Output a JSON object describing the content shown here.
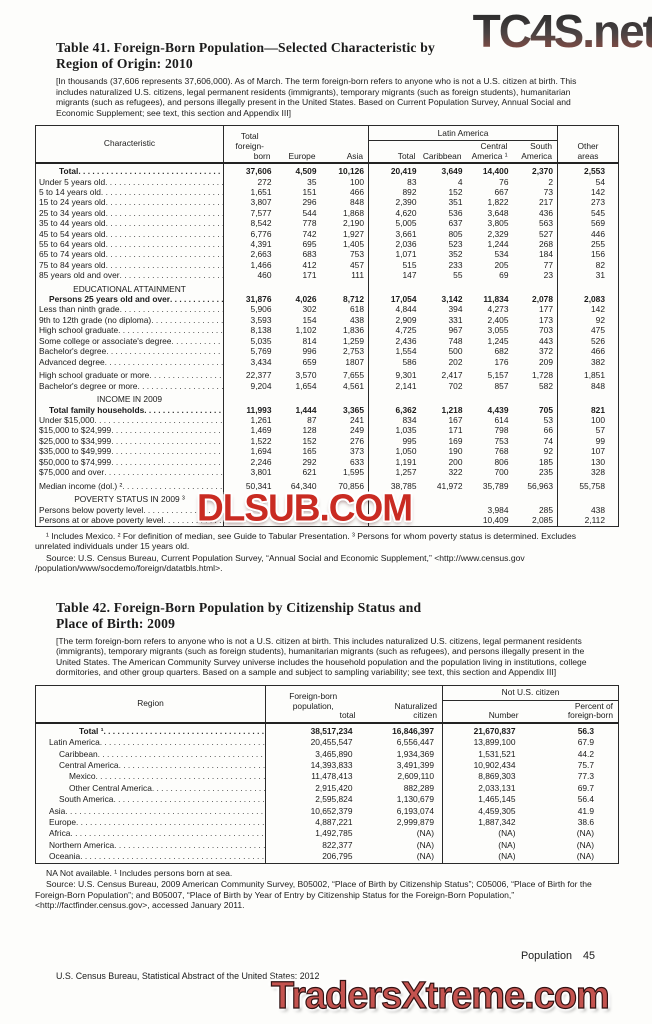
{
  "page": {
    "footer_left": "U.S. Census Bureau, Statistical Abstract of the United States: 2012",
    "page_label": "Population",
    "page_number": "45"
  },
  "watermarks": {
    "top": "TC4S.net",
    "middle": "DLSUB.COM",
    "bottom": "TradersXtreme.com"
  },
  "colors": {
    "watermark_top_gradient_start": "#2e2e2e",
    "watermark_top_gradient_end": "#8a4d44",
    "watermark_middle_red": "#c92b22",
    "watermark_bottom_red": "#c4534f",
    "text": "#1b1b1b",
    "paper": "#fdfdfb"
  },
  "table41": {
    "title_lines": [
      "Table 41. Foreign-Born Population—Selected Characteristic by",
      "Region of Origin: 2010"
    ],
    "note": "[In thousands (37,606 represents 37,606,000). As of March. The term foreign-born refers to anyone who is not a U.S. citizen at birth. This includes naturalized U.S. citizens, legal permanent residents (immigrants), temporary migrants (such as foreign students), humanitarian migrants (such as refugees), and persons illegally present in the United States. Based on Current Population Survey, Annual Social and Economic Supplement; see text, this section and Appendix III]",
    "headers": {
      "characteristic": "Characteristic",
      "total_foreign_born_lines": [
        "Total",
        "foreign-",
        "born"
      ],
      "europe": "Europe",
      "asia": "Asia",
      "latin_america": "Latin America",
      "la_total": "Total",
      "caribbean": "Caribbean",
      "central_america_lines": [
        "Central",
        "America ¹"
      ],
      "south_america_lines": [
        "South",
        "America"
      ],
      "other_areas_lines": [
        "Other",
        "areas"
      ]
    },
    "rows": [
      {
        "label": "Total",
        "lvl": 2,
        "bold": true,
        "cells": [
          "37,606",
          "4,509",
          "10,126",
          "20,419",
          "3,649",
          "14,400",
          "2,370",
          "2,553"
        ]
      },
      {
        "label": "Under 5 years old",
        "cells": [
          "272",
          "35",
          "100",
          "83",
          "4",
          "76",
          "2",
          "54"
        ]
      },
      {
        "label": "5 to 14 years old",
        "cells": [
          "1,651",
          "151",
          "466",
          "892",
          "152",
          "667",
          "73",
          "142"
        ]
      },
      {
        "label": "15 to 24 years old",
        "cells": [
          "3,807",
          "296",
          "848",
          "2,390",
          "351",
          "1,822",
          "217",
          "273"
        ]
      },
      {
        "label": "25 to 34 years old",
        "cells": [
          "7,577",
          "544",
          "1,868",
          "4,620",
          "536",
          "3,648",
          "436",
          "545"
        ]
      },
      {
        "label": "35 to 44 years old",
        "cells": [
          "8,542",
          "778",
          "2,190",
          "5,005",
          "637",
          "3,805",
          "563",
          "569"
        ]
      },
      {
        "label": "45 to 54 years old",
        "cells": [
          "6,776",
          "742",
          "1,927",
          "3,661",
          "805",
          "2,329",
          "527",
          "446"
        ]
      },
      {
        "label": "55 to 64 years old",
        "cells": [
          "4,391",
          "695",
          "1,405",
          "2,036",
          "523",
          "1,244",
          "268",
          "255"
        ]
      },
      {
        "label": "65 to 74 years old",
        "cells": [
          "2,663",
          "683",
          "753",
          "1,071",
          "352",
          "534",
          "184",
          "156"
        ]
      },
      {
        "label": "75 to 84 years old",
        "cells": [
          "1,466",
          "412",
          "457",
          "515",
          "233",
          "205",
          "77",
          "82"
        ]
      },
      {
        "label": "85 years old and over",
        "cells": [
          "460",
          "171",
          "111",
          "147",
          "55",
          "69",
          "23",
          "31"
        ]
      },
      {
        "section": "EDUCATIONAL ATTAINMENT"
      },
      {
        "label": "Persons 25 years old and over",
        "lvl": 1,
        "bold": true,
        "cells": [
          "31,876",
          "4,026",
          "8,712",
          "17,054",
          "3,142",
          "11,834",
          "2,078",
          "2,083"
        ]
      },
      {
        "label": "Less than ninth grade",
        "cells": [
          "5,906",
          "302",
          "618",
          "4,844",
          "394",
          "4,273",
          "177",
          "142"
        ]
      },
      {
        "label": "9th to 12th grade (no diploma)",
        "cells": [
          "3,593",
          "154",
          "438",
          "2,909",
          "331",
          "2,405",
          "173",
          "92"
        ]
      },
      {
        "label": "High school graduate",
        "cells": [
          "8,138",
          "1,102",
          "1,836",
          "4,725",
          "967",
          "3,055",
          "703",
          "475"
        ]
      },
      {
        "label": "Some college or associate's degree",
        "cells": [
          "5,035",
          "814",
          "1,259",
          "2,436",
          "748",
          "1,245",
          "443",
          "526"
        ]
      },
      {
        "label": "Bachelor's degree",
        "cells": [
          "5,769",
          "996",
          "2,753",
          "1,554",
          "500",
          "682",
          "372",
          "466"
        ]
      },
      {
        "label": "Advanced degree",
        "cells": [
          "3,434",
          "659",
          "1807",
          "586",
          "202",
          "176",
          "209",
          "382"
        ]
      },
      {
        "label": "High school graduate or more",
        "gap": true,
        "cells": [
          "22,377",
          "3,570",
          "7,655",
          "9,301",
          "2,417",
          "5,157",
          "1,728",
          "1,851"
        ]
      },
      {
        "label": "Bachelor's degree or more",
        "cells": [
          "9,204",
          "1,654",
          "4,561",
          "2,141",
          "702",
          "857",
          "582",
          "848"
        ]
      },
      {
        "section": "INCOME IN 2009"
      },
      {
        "label": "Total family households",
        "lvl": 1,
        "bold": true,
        "cells": [
          "11,993",
          "1,444",
          "3,365",
          "6,362",
          "1,218",
          "4,439",
          "705",
          "821"
        ]
      },
      {
        "label": "Under $15,000",
        "cells": [
          "1,261",
          "87",
          "241",
          "834",
          "167",
          "614",
          "53",
          "100"
        ]
      },
      {
        "label": "$15,000 to $24,999",
        "cells": [
          "1,469",
          "128",
          "249",
          "1,035",
          "171",
          "798",
          "66",
          "57"
        ]
      },
      {
        "label": "$25,000 to $34,999",
        "cells": [
          "1,522",
          "152",
          "276",
          "995",
          "169",
          "753",
          "74",
          "99"
        ]
      },
      {
        "label": "$35,000 to $49,999",
        "cells": [
          "1,694",
          "165",
          "373",
          "1,050",
          "190",
          "768",
          "92",
          "107"
        ]
      },
      {
        "label": "$50,000 to $74,999",
        "cells": [
          "2,246",
          "292",
          "633",
          "1,191",
          "200",
          "806",
          "185",
          "130"
        ]
      },
      {
        "label": "$75,000 and over",
        "cells": [
          "3,801",
          "621",
          "1,595",
          "1,257",
          "322",
          "700",
          "235",
          "328"
        ]
      },
      {
        "label": "Median income (dol.) ²",
        "gap": true,
        "cells": [
          "50,341",
          "64,340",
          "70,856",
          "38,785",
          "41,972",
          "35,789",
          "56,963",
          "55,758"
        ]
      },
      {
        "section": "POVERTY STATUS IN 2009 ³"
      },
      {
        "label": "Persons below poverty level",
        "cells": [
          "",
          "",
          "",
          "",
          "",
          "3,984",
          "285",
          "438"
        ]
      },
      {
        "label": "Persons at or above poverty level",
        "cells": [
          "",
          "",
          "",
          "",
          "",
          "10,409",
          "2,085",
          "2,112"
        ]
      }
    ],
    "footnotes": "¹ Includes Mexico. ² For definition of median, see Guide to Tabular Presentation. ³ Persons for whom poverty status is determined. Excludes unrelated individuals under 15 years old.",
    "source": "Source: U.S. Census Bureau, Current Population Survey, “Annual Social and Economic Supplement,” <http://www.census.gov /population/www/socdemo/foreign/datatbls.html>."
  },
  "table42": {
    "title_lines": [
      "Table 42. Foreign-Born Population by Citizenship Status and",
      "Place of Birth: 2009"
    ],
    "note": "[The term foreign-born refers to anyone who is not a U.S. citizen at birth. This includes naturalized U.S. citizens, legal permanent residents (immigrants), temporary migrants (such as foreign students), humanitarian migrants (such as refugees), and persons illegally present in the United States. The American Community Survey universe includes the household population and the population living in institutions, college dormitories, and other group quarters. Based on a sample and subject to sampling variability; see text, this section and Appendix III]",
    "headers": {
      "region": "Region",
      "foreign_born_pop_lines": [
        "Foreign-born",
        "population,",
        "total"
      ],
      "naturalized_lines": [
        "Naturalized",
        "citizen"
      ],
      "not_us_citizen": "Not U.S. citizen",
      "number": "Number",
      "percent_lines": [
        "Percent of",
        "foreign-born"
      ]
    },
    "rows": [
      {
        "label": "Total ¹",
        "lvl": 4,
        "bold": true,
        "cells": [
          "38,517,234",
          "16,846,397",
          "21,670,837",
          "56.3"
        ]
      },
      {
        "label": "Latin America",
        "lvl": 1,
        "cells": [
          "20,455,547",
          "6,556,447",
          "13,899,100",
          "67.9"
        ]
      },
      {
        "label": "Caribbean",
        "lvl": 2,
        "cells": [
          "3,465,890",
          "1,934,369",
          "1,531,521",
          "44.2"
        ]
      },
      {
        "label": "Central America",
        "lvl": 2,
        "cells": [
          "14,393,833",
          "3,491,399",
          "10,902,434",
          "75.7"
        ]
      },
      {
        "label": "Mexico",
        "lvl": 3,
        "cells": [
          "11,478,413",
          "2,609,110",
          "8,869,303",
          "77.3"
        ]
      },
      {
        "label": "Other Central America",
        "lvl": 3,
        "cells": [
          "2,915,420",
          "882,289",
          "2,033,131",
          "69.7"
        ]
      },
      {
        "label": "South America",
        "lvl": 2,
        "cells": [
          "2,595,824",
          "1,130,679",
          "1,465,145",
          "56.4"
        ]
      },
      {
        "label": "Asia",
        "lvl": 1,
        "cells": [
          "10,652,379",
          "6,193,074",
          "4,459,305",
          "41.9"
        ]
      },
      {
        "label": "Europe",
        "lvl": 1,
        "cells": [
          "4,887,221",
          "2,999,879",
          "1,887,342",
          "38.6"
        ]
      },
      {
        "label": "Africa",
        "lvl": 1,
        "cells": [
          "1,492,785",
          "(NA)",
          "(NA)",
          "(NA)"
        ]
      },
      {
        "label": "Northern America",
        "lvl": 1,
        "cells": [
          "822,377",
          "(NA)",
          "(NA)",
          "(NA)"
        ]
      },
      {
        "label": "Oceania",
        "lvl": 1,
        "cells": [
          "206,795",
          "(NA)",
          "(NA)",
          "(NA)"
        ]
      }
    ],
    "footnotes": "NA Not available. ¹ Includes persons born at sea.",
    "source": "Source: U.S. Census Bureau, 2009 American Community Survey, B05002, “Place of Birth by Citizenship Status”; C05006, “Place of Birth for the Foreign-Born Population”; and B05007, “Place of Birth by Year of Entry by Citizenship Status for the Foreign-Born Population,” <http://factfinder.census.gov>, accessed January 2011."
  }
}
